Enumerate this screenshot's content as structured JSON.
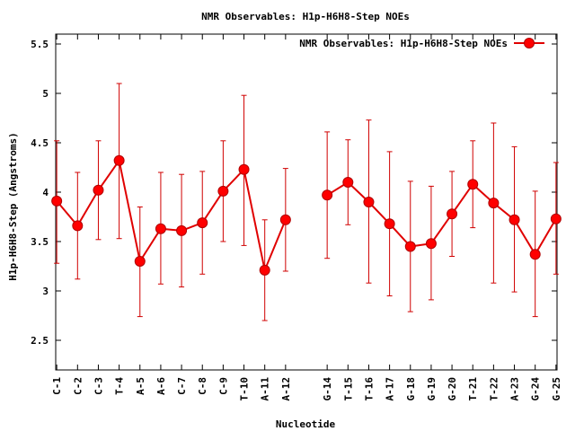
{
  "chart_data": {
    "type": "line",
    "title": "NMR Observables: H1p-H6H8-Step NOEs",
    "xlabel": "Nucleotide",
    "ylabel": "H1p-H6H8-Step (Angstroms)",
    "ylim": [
      2.2,
      5.6
    ],
    "yticks": [
      "2.5",
      "3",
      "3.5",
      "4",
      "4.5",
      "5",
      "5.5"
    ],
    "legend": {
      "position": "top-right",
      "label": "NMR Observables: H1p-H6H8-Step NOEs"
    },
    "categories": [
      "C-1",
      "C-2",
      "C-3",
      "T-4",
      "A-5",
      "A-6",
      "C-7",
      "C-8",
      "C-9",
      "T-10",
      "A-11",
      "A-12",
      "G-14",
      "T-15",
      "T-16",
      "A-17",
      "G-18",
      "G-19",
      "G-20",
      "T-21",
      "T-22",
      "A-23",
      "G-24",
      "G-25"
    ],
    "positions": [
      1,
      2,
      3,
      4,
      5,
      6,
      7,
      8,
      9,
      10,
      11,
      12,
      14,
      15,
      16,
      17,
      18,
      19,
      20,
      21,
      22,
      23,
      24,
      25
    ],
    "series": [
      {
        "name": "NMR Observables: H1p-H6H8-Step NOEs",
        "color": "#ff0000",
        "values": [
          3.91,
          3.66,
          4.02,
          4.32,
          3.3,
          3.63,
          3.61,
          3.69,
          4.01,
          4.23,
          3.21,
          3.72,
          3.97,
          4.1,
          3.9,
          3.68,
          3.45,
          3.48,
          3.78,
          4.08,
          3.89,
          3.72,
          3.37,
          3.73
        ],
        "err_low": [
          3.28,
          3.12,
          3.52,
          3.53,
          2.74,
          3.07,
          3.04,
          3.17,
          3.5,
          3.46,
          2.7,
          3.2,
          3.33,
          3.67,
          3.08,
          2.95,
          2.79,
          2.91,
          3.35,
          3.64,
          3.08,
          2.99,
          2.74,
          3.17
        ],
        "err_high": [
          4.52,
          4.2,
          4.52,
          5.1,
          3.85,
          4.2,
          4.18,
          4.21,
          4.52,
          4.98,
          3.72,
          4.24,
          4.61,
          4.53,
          4.73,
          4.41,
          4.11,
          4.06,
          4.21,
          4.52,
          4.7,
          4.46,
          4.01,
          4.3
        ]
      }
    ]
  }
}
